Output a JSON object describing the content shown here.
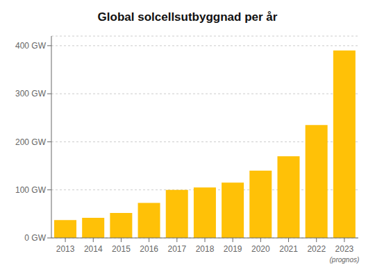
{
  "chart_data": {
    "type": "bar",
    "title": "Global solcellsutbyggnad per år",
    "categories": [
      "2013",
      "2014",
      "2015",
      "2016",
      "2017",
      "2018",
      "2019",
      "2020",
      "2021",
      "2022",
      "2023"
    ],
    "values": [
      37,
      42,
      52,
      73,
      100,
      105,
      115,
      140,
      170,
      235,
      390
    ],
    "color": "#FFC107",
    "ylim": [
      0,
      420
    ],
    "yticks": [
      {
        "value": 0,
        "label": "0 GW"
      },
      {
        "value": 100,
        "label": "100 GW"
      },
      {
        "value": 200,
        "label": "200 GW"
      },
      {
        "value": 300,
        "label": "300 GW"
      },
      {
        "value": 400,
        "label": "400 GW"
      }
    ],
    "grid": true,
    "annotations": [
      {
        "category": "2023",
        "text": "(prognos)"
      }
    ]
  }
}
